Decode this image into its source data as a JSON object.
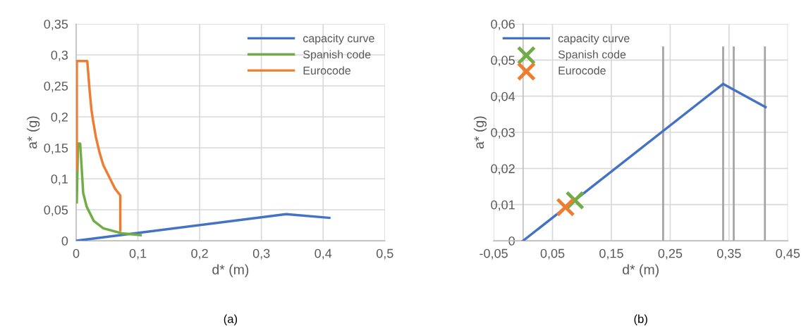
{
  "chart_data": [
    {
      "type": "line",
      "xlabel": "d* (m)",
      "ylabel": "a* (g)",
      "annotations": [
        "(a)"
      ],
      "xlim": [
        0,
        0.5
      ],
      "xticks": [
        0,
        {
          "value": 0.1,
          "label": "0,1"
        },
        {
          "value": 0.2,
          "label": "0,2"
        },
        {
          "value": 0.3,
          "label": "0,3"
        },
        {
          "value": 0.4,
          "label": "0,4"
        },
        {
          "value": 0.5,
          "label": "0,5"
        }
      ],
      "ylim": [
        0,
        0.35
      ],
      "yticks": [
        0,
        {
          "value": 0.05,
          "label": "0,05"
        },
        {
          "value": 0.1,
          "label": "0,1"
        },
        {
          "value": 0.15,
          "label": "0,15"
        },
        {
          "value": 0.2,
          "label": "0,2"
        },
        {
          "value": 0.25,
          "label": "0,25"
        },
        {
          "value": 0.3,
          "label": "0,3"
        },
        {
          "value": 0.35,
          "label": "0,35"
        }
      ],
      "grid": true,
      "legend": "top right",
      "series": [
        {
          "name": "capacity curve",
          "color": "#4472c4",
          "x": [
            0,
            0.34,
            0.41
          ],
          "values": [
            0,
            0.043,
            0.037
          ]
        },
        {
          "name": "Spanish code",
          "color": "#70ad47",
          "x": [
            0.001,
            0.003,
            0.0065,
            0.0114,
            0.017,
            0.0285,
            0.044,
            0.074,
            0.1045
          ],
          "values": [
            0.062,
            0.157,
            0.157,
            0.077,
            0.055,
            0.032,
            0.02,
            0.012,
            0.009
          ]
        },
        {
          "name": "Eurocode",
          "color": "#ed7d31",
          "x": [
            0.001,
            0.001,
            0.018,
            0.022,
            0.0247,
            0.027,
            0.032,
            0.038,
            0.044,
            0.055,
            0.063,
            0.0715,
            0.0715
          ],
          "values": [
            0.115,
            0.29,
            0.29,
            0.24,
            0.212,
            0.196,
            0.167,
            0.142,
            0.122,
            0.1,
            0.084,
            0.073,
            0.017
          ]
        }
      ]
    },
    {
      "type": "line",
      "xlabel": "d* (m)",
      "ylabel": "a* (g)",
      "annotations": [
        "(b)"
      ],
      "xlim": [
        -0.05,
        0.45
      ],
      "xticks": [
        {
          "value": -0.05,
          "label": "-0,05"
        },
        {
          "value": 0.05,
          "label": "0,05"
        },
        {
          "value": 0.15,
          "label": "0,15"
        },
        {
          "value": 0.25,
          "label": "0,25"
        },
        {
          "value": 0.35,
          "label": "0,35"
        },
        {
          "value": 0.45,
          "label": "0,45"
        }
      ],
      "ylim": [
        0,
        0.06
      ],
      "yticks": [
        0,
        {
          "value": 0.01,
          "label": "0,01"
        },
        {
          "value": 0.02,
          "label": "0,02"
        },
        {
          "value": 0.03,
          "label": "0,03"
        },
        {
          "value": 0.04,
          "label": "0,04"
        },
        {
          "value": 0.05,
          "label": "0,05"
        },
        {
          "value": 0.06,
          "label": "0,06"
        }
      ],
      "grid": true,
      "legend": "top left",
      "series": [
        {
          "color": "#a5a5a5",
          "x": [
            0.238,
            0.238
          ],
          "values": [
            0,
            0.0535
          ]
        },
        {
          "color": "#a5a5a5",
          "x": [
            0.34,
            0.34
          ],
          "values": [
            0,
            0.0535
          ]
        },
        {
          "color": "#a5a5a5",
          "x": [
            0.358,
            0.358
          ],
          "values": [
            0,
            0.0535
          ]
        },
        {
          "color": "#a5a5a5",
          "x": [
            0.411,
            0.411
          ],
          "values": [
            0,
            0.0535
          ]
        },
        {
          "name": "capacity curve",
          "color": "#4472c4",
          "x": [
            0,
            0.34,
            0.412
          ],
          "values": [
            0,
            0.0434,
            0.037
          ]
        },
        {
          "name": "Spanish code",
          "type": "scatter",
          "marker": "cross",
          "color": "#70ad47",
          "x": [
            0.088
          ],
          "values": [
            0.0112
          ]
        },
        {
          "name": "Eurocode",
          "type": "scatter",
          "marker": "cross",
          "color": "#ed7d31",
          "x": [
            0.072
          ],
          "values": [
            0.0093
          ]
        }
      ]
    }
  ]
}
